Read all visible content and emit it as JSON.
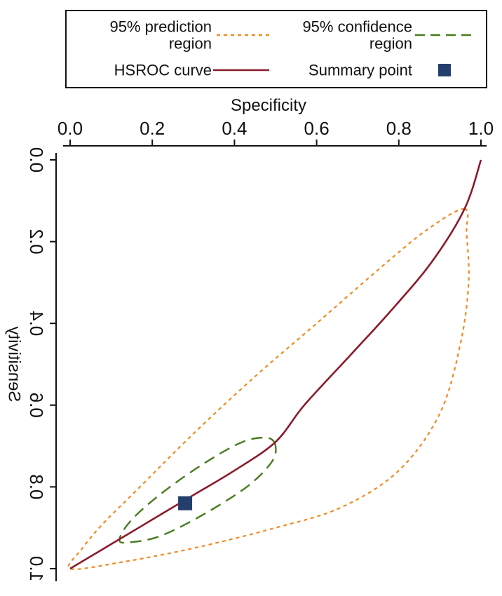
{
  "chart_data": {
    "type": "line",
    "xlabel": "Specificity",
    "ylabel": "Sensitivity",
    "xlim": [
      1.0,
      0.0
    ],
    "ylim": [
      0.0,
      1.0
    ],
    "x_ticks": [
      "1.0",
      "0.8",
      "0.6",
      "0.4",
      "0.2",
      "0.0"
    ],
    "y_ticks": [
      "0.0",
      "0.2",
      "0.4",
      "0.6",
      "0.8",
      "1.0"
    ],
    "x_tick_values": [
      1.0,
      0.8,
      0.6,
      0.4,
      0.2,
      0.0
    ],
    "y_tick_values": [
      0.0,
      0.2,
      0.4,
      0.6,
      0.8,
      1.0
    ],
    "legend_position": "top",
    "mirrored_horizontally": true,
    "series": [
      {
        "name": "Summary point",
        "kind": "marker",
        "color": "#243F6B",
        "points": [
          [
            0.28,
            0.84
          ]
        ]
      },
      {
        "name": "HSROC curve",
        "kind": "line",
        "color": "#8B1A2B",
        "points": [
          [
            1.0,
            0.0
          ],
          [
            0.96,
            0.12
          ],
          [
            0.88,
            0.25
          ],
          [
            0.78,
            0.37
          ],
          [
            0.68,
            0.48
          ],
          [
            0.57,
            0.6
          ],
          [
            0.5,
            0.69
          ],
          [
            0.4,
            0.76
          ],
          [
            0.3,
            0.82
          ],
          [
            0.2,
            0.88
          ],
          [
            0.1,
            0.94
          ],
          [
            0.0,
            1.0
          ]
        ]
      },
      {
        "name": "95% confidence region",
        "kind": "ellipse",
        "color": "#4A7A1E",
        "center": [
          0.315,
          0.805
        ],
        "points": [
          [
            0.5,
            0.7
          ],
          [
            0.48,
            0.68
          ],
          [
            0.42,
            0.69
          ],
          [
            0.33,
            0.74
          ],
          [
            0.23,
            0.81
          ],
          [
            0.15,
            0.88
          ],
          [
            0.12,
            0.93
          ],
          [
            0.15,
            0.935
          ],
          [
            0.22,
            0.92
          ],
          [
            0.32,
            0.87
          ],
          [
            0.43,
            0.8
          ],
          [
            0.49,
            0.74
          ],
          [
            0.5,
            0.7
          ]
        ]
      },
      {
        "name": "95% prediction region",
        "kind": "closed-curve",
        "color": "#F08A1E",
        "points": [
          [
            0.96,
            0.12
          ],
          [
            0.87,
            0.17
          ],
          [
            0.76,
            0.26
          ],
          [
            0.6,
            0.4
          ],
          [
            0.45,
            0.53
          ],
          [
            0.3,
            0.67
          ],
          [
            0.16,
            0.81
          ],
          [
            0.08,
            0.89
          ],
          [
            0.03,
            0.95
          ],
          [
            0.0,
            1.0
          ],
          [
            0.12,
            0.985
          ],
          [
            0.3,
            0.95
          ],
          [
            0.5,
            0.9
          ],
          [
            0.66,
            0.85
          ],
          [
            0.8,
            0.76
          ],
          [
            0.9,
            0.62
          ],
          [
            0.95,
            0.45
          ],
          [
            0.97,
            0.3
          ],
          [
            0.965,
            0.18
          ],
          [
            0.96,
            0.12
          ]
        ]
      }
    ]
  },
  "legend": {
    "items": [
      {
        "label_lines": [
          "95% confidence",
          "region"
        ],
        "symbol": "dashed",
        "color": "#4A7A1E"
      },
      {
        "label_lines": [
          "95% prediction",
          "region"
        ],
        "symbol": "dotted",
        "color": "#F08A1E"
      },
      {
        "label_lines": [
          "Summary point"
        ],
        "symbol": "square",
        "color": "#243F6B"
      },
      {
        "label_lines": [
          "HSROC curve"
        ],
        "symbol": "solid",
        "color": "#8B1A2B"
      }
    ]
  }
}
